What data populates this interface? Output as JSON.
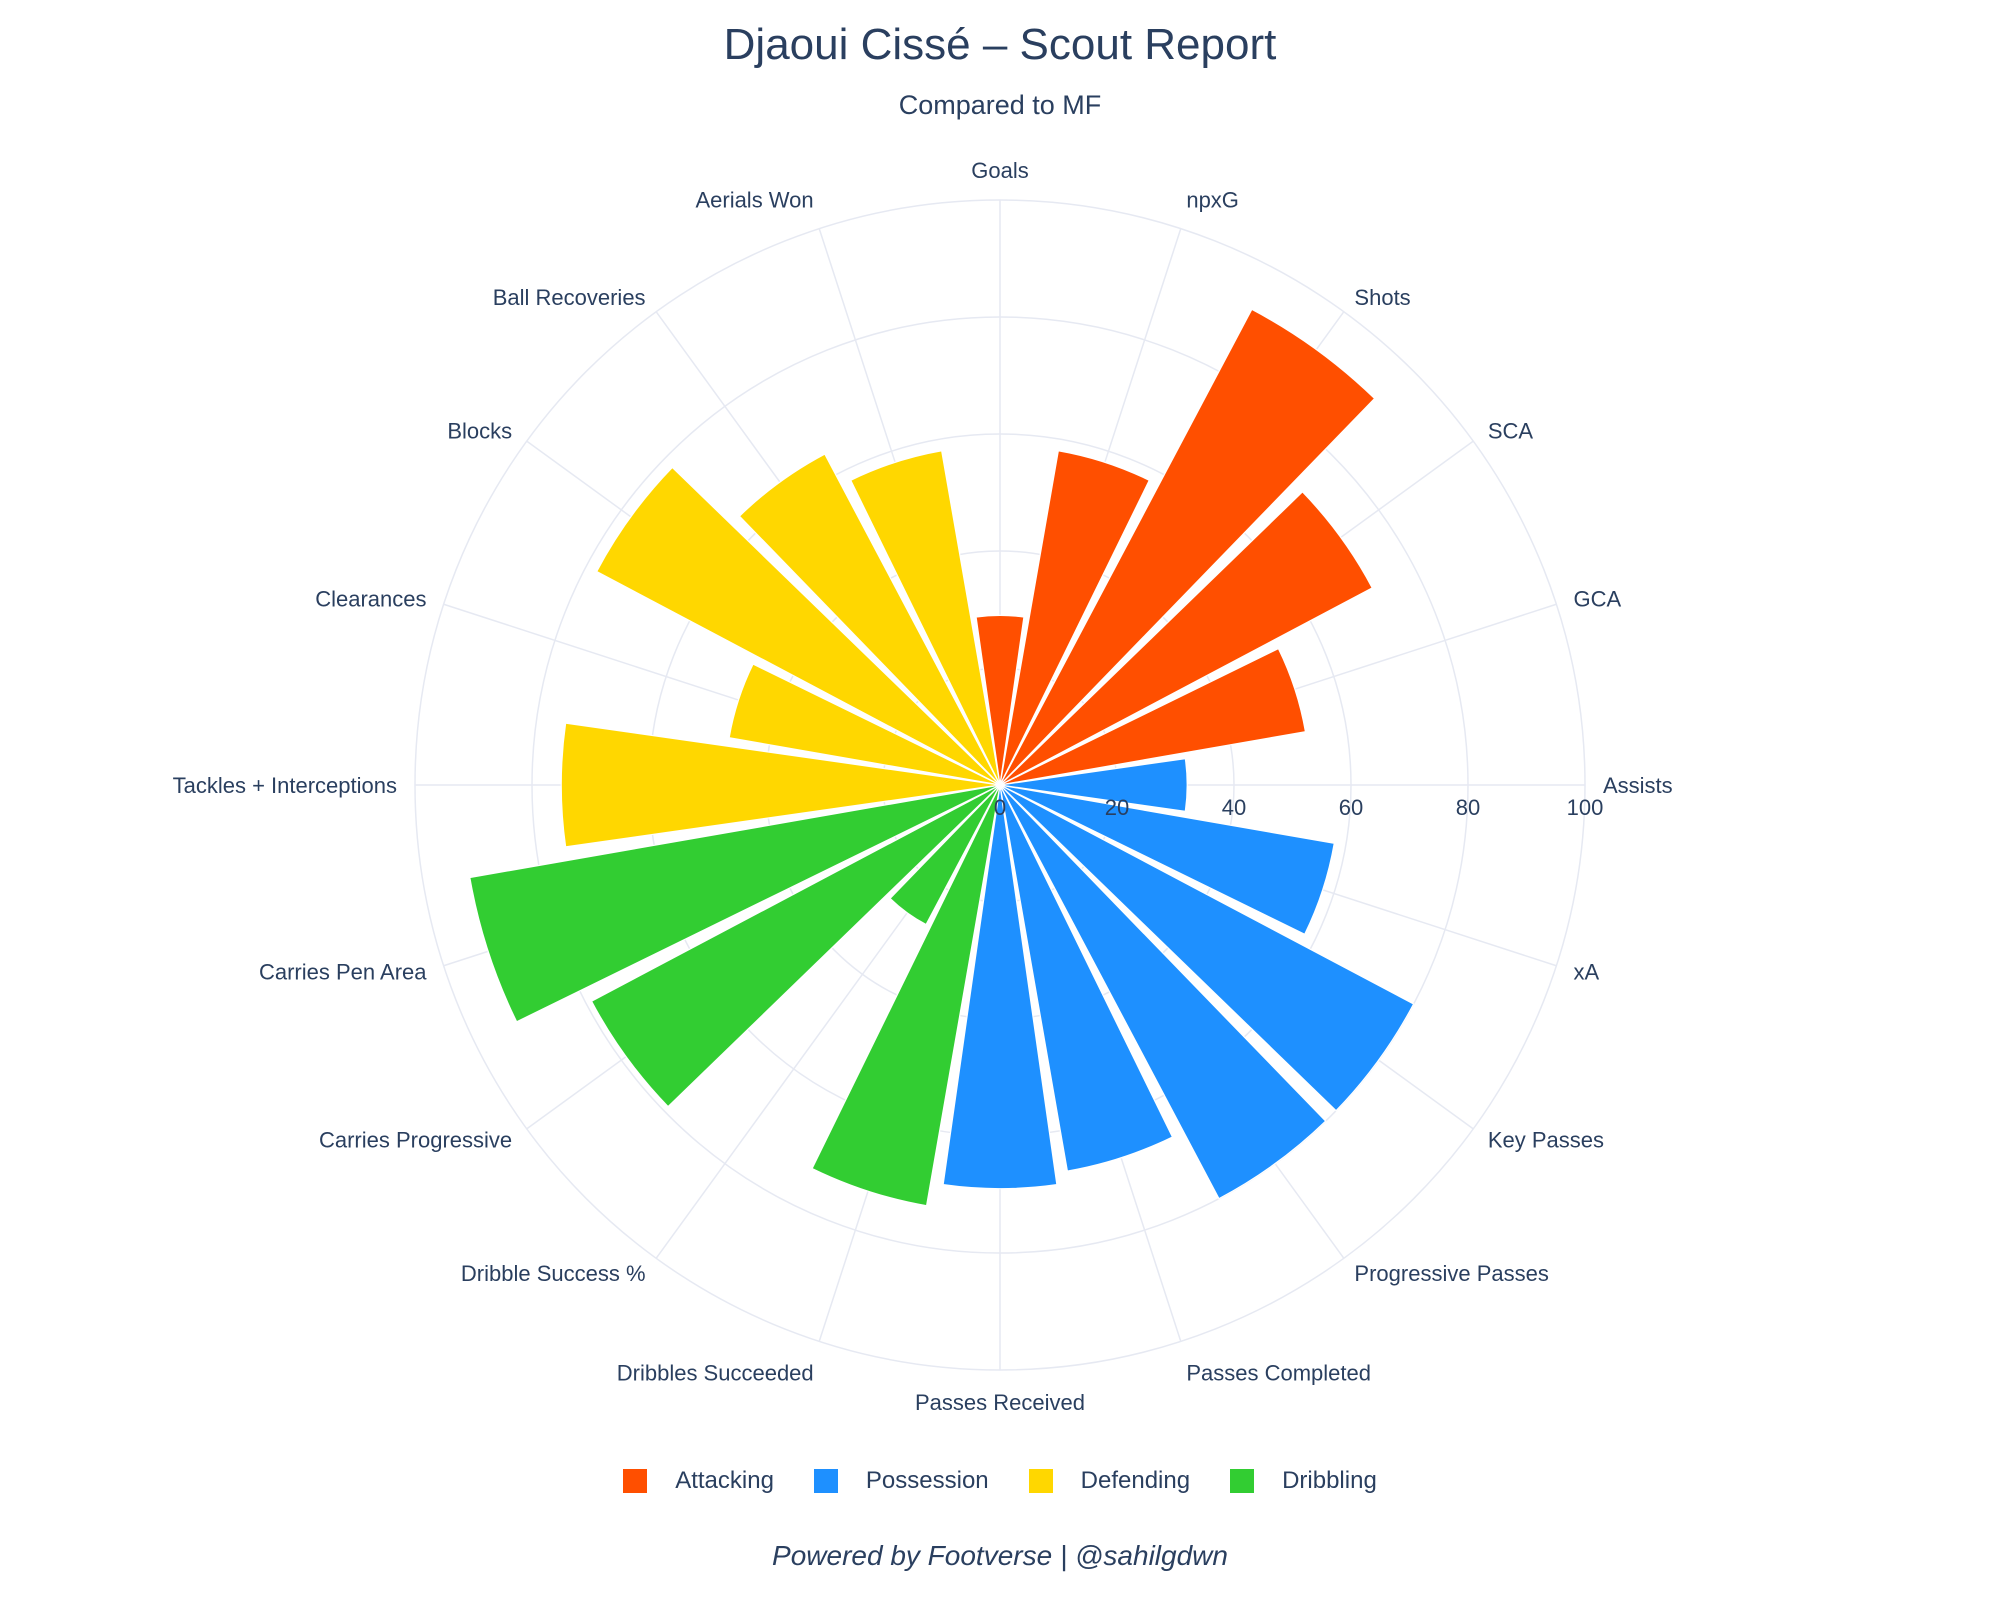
{
  "chart_data": {
    "type": "bar",
    "subtype": "polar",
    "title": "Djaoui Cissé – Scout Report",
    "subtitle": "Compared to MF",
    "radial_range": [
      0,
      100
    ],
    "radial_ticks": [
      "0",
      "20",
      "40",
      "60",
      "80",
      "100"
    ],
    "grid": true,
    "legend_position": "bottom-center",
    "categories": [
      "Goals",
      "npxG",
      "Shots",
      "SCA",
      "GCA",
      "Assists",
      "xA",
      "Key Passes",
      "Progressive Passes",
      "Passes Completed",
      "Passes Received",
      "Dribbles Succeeded",
      "Dribble Success %",
      "Carries Progressive",
      "Carries Pen Area",
      "Tackles + Interceptions",
      "Clearances",
      "Blocks",
      "Ball Recoveries",
      "Aerials Won"
    ],
    "values": [
      29,
      58,
      92,
      72,
      53,
      32,
      58,
      80,
      80,
      67,
      69,
      73,
      27,
      79,
      92,
      75,
      47,
      78,
      64,
      58
    ],
    "groups": [
      "Attacking",
      "Attacking",
      "Attacking",
      "Attacking",
      "Attacking",
      "Possession",
      "Possession",
      "Possession",
      "Possession",
      "Possession",
      "Possession",
      "Dribbling",
      "Dribbling",
      "Dribbling",
      "Dribbling",
      "Defending",
      "Defending",
      "Defending",
      "Defending",
      "Defending"
    ],
    "series": [
      {
        "name": "Attacking",
        "color": "#ff4f00"
      },
      {
        "name": "Possession",
        "color": "#1e90ff"
      },
      {
        "name": "Defending",
        "color": "#ffd700"
      },
      {
        "name": "Dribbling",
        "color": "#32cd32"
      }
    ]
  },
  "footer": "Powered by Footverse | @sahilgdwn"
}
